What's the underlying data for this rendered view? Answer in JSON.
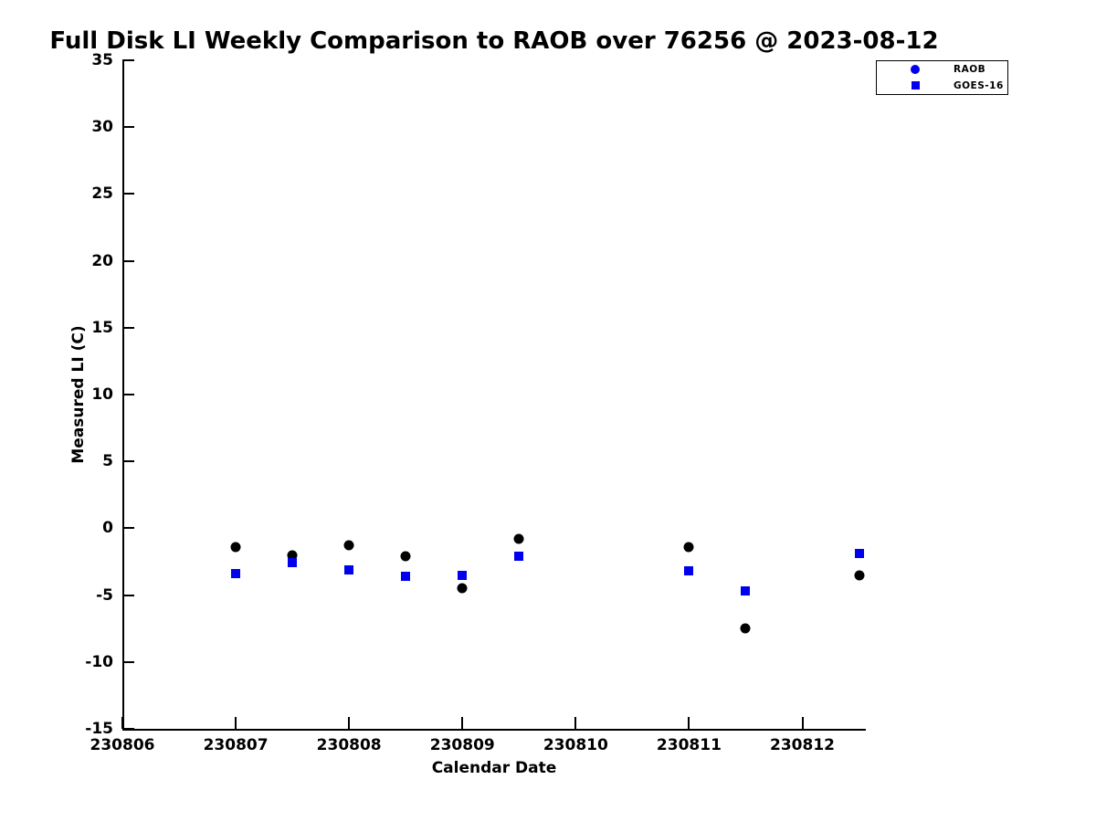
{
  "page": {
    "background_color": "#ffffff",
    "text_color": "#000000"
  },
  "chart_data": {
    "type": "scatter",
    "title": "Full Disk LI Weekly Comparison to RAOB over 76256 @ 2023-08-12",
    "xlabel": "Calendar Date",
    "ylabel": "Measured LI (C)",
    "xlim": [
      230806,
      230812.56
    ],
    "ylim": [
      -15,
      35
    ],
    "xticks": [
      230806,
      230807,
      230808,
      230809,
      230810,
      230811,
      230812
    ],
    "yticks": [
      35,
      30,
      25,
      20,
      15,
      10,
      5,
      0,
      -5,
      -10,
      -15
    ],
    "grid": false,
    "legend": {
      "position": "outside-top-right",
      "border_color": "#000000",
      "background": "#ffffff"
    },
    "x": [
      230807,
      230807.5,
      230808,
      230808.5,
      230809,
      230809.5,
      230811,
      230811.5,
      230812.5
    ],
    "series": [
      {
        "name": "RAOB",
        "marker": "circle",
        "plot_color": "#000000",
        "legend_marker_color": "#0000ee",
        "values": [
          -1.4,
          -2.0,
          -1.3,
          -2.1,
          -4.5,
          -0.8,
          -1.4,
          -7.5,
          -3.5
        ]
      },
      {
        "name": "GOES-16",
        "marker": "square",
        "plot_color": "#0000ee",
        "legend_marker_color": "#0000ee",
        "values": [
          -3.4,
          -2.6,
          -3.1,
          -3.6,
          -3.5,
          -2.1,
          -3.2,
          -4.7,
          -1.9
        ]
      }
    ]
  }
}
